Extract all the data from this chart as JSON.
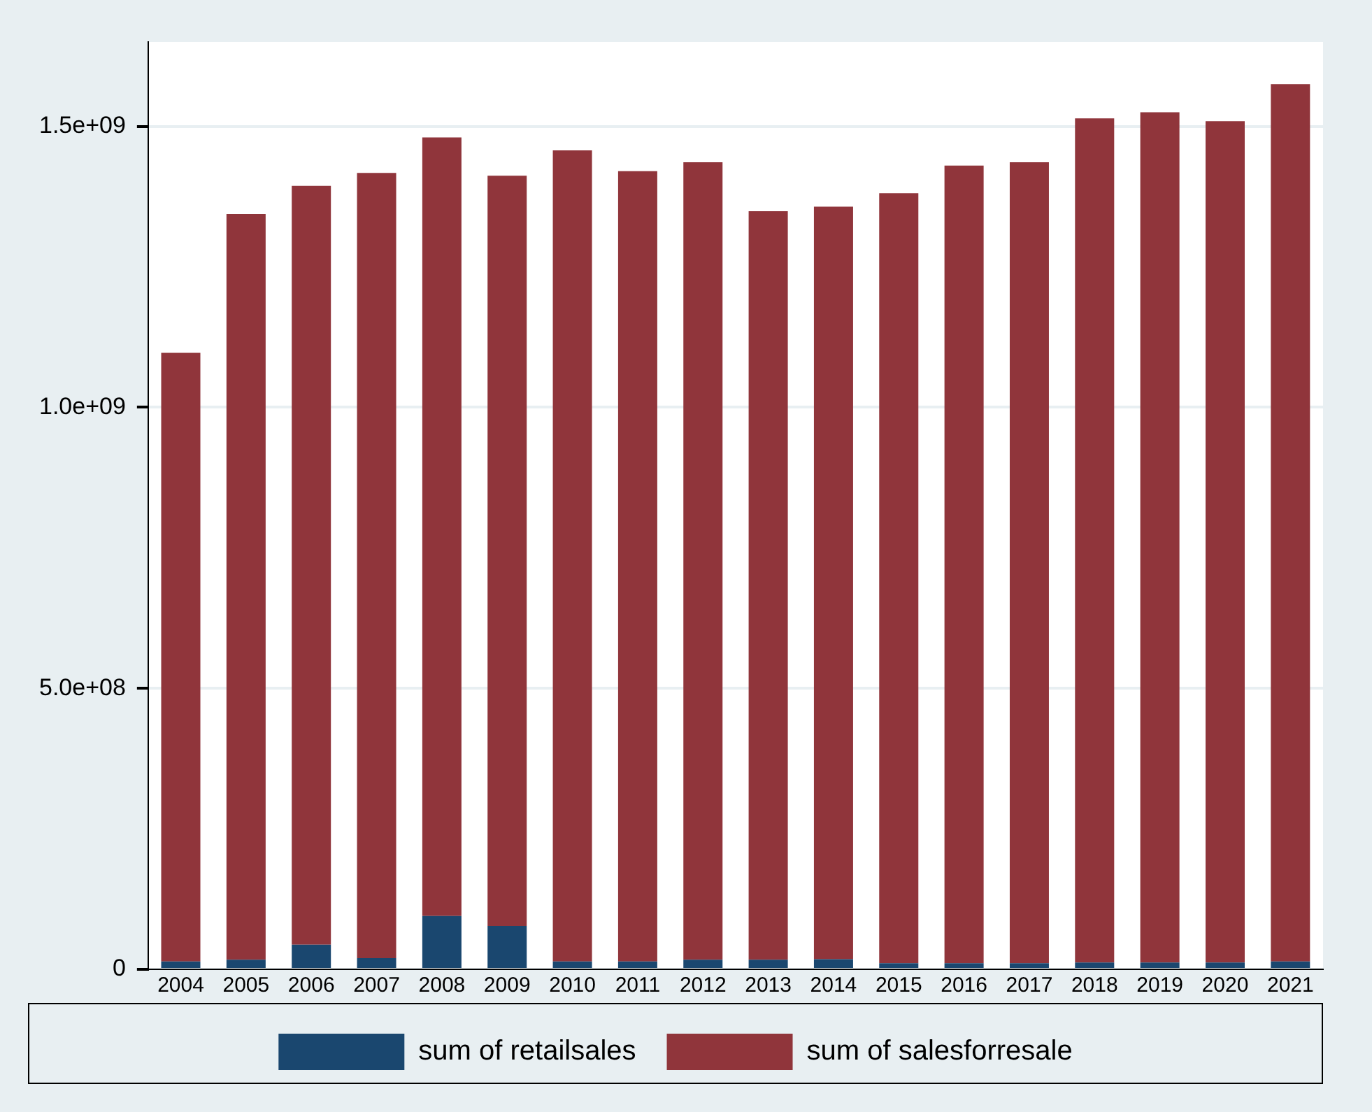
{
  "chart_data": {
    "type": "bar",
    "stacked": true,
    "categories": [
      "2004",
      "2005",
      "2006",
      "2007",
      "2008",
      "2009",
      "2010",
      "2011",
      "2012",
      "2013",
      "2014",
      "2015",
      "2016",
      "2017",
      "2018",
      "2019",
      "2020",
      "2021"
    ],
    "series": [
      {
        "name": "sum of retailsales",
        "color": "#1a476f",
        "values": [
          14000000,
          17000000,
          44000000,
          20000000,
          95000000,
          77000000,
          14000000,
          14000000,
          17000000,
          17000000,
          18000000,
          11000000,
          11000000,
          11000000,
          12000000,
          12000000,
          12000000,
          14000000
        ]
      },
      {
        "name": "sum of salesforresale",
        "color": "#90353b",
        "values": [
          1083000000,
          1327000000,
          1350000000,
          1397000000,
          1385000000,
          1335000000,
          1443000000,
          1406000000,
          1419000000,
          1332000000,
          1339000000,
          1370000000,
          1419000000,
          1425000000,
          1502000000,
          1513000000,
          1497000000,
          1561000000
        ]
      }
    ],
    "ylim": [
      0,
      1650000000
    ],
    "yticks": [
      {
        "value": 0,
        "label": "0"
      },
      {
        "value": 500000000,
        "label": "5.0e+08"
      },
      {
        "value": 1000000000,
        "label": "1.0e+09"
      },
      {
        "value": 1500000000,
        "label": "1.5e+09"
      }
    ],
    "grid": "y",
    "legend": "bottom"
  }
}
